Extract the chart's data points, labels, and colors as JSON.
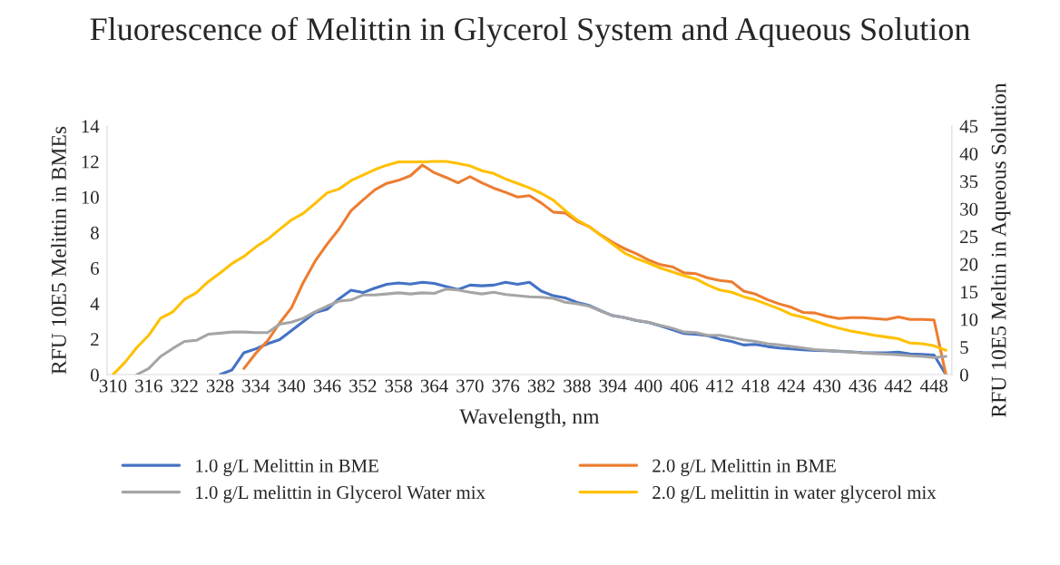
{
  "chart_data": {
    "type": "line",
    "title": "Fluorescence of Melittin in Glycerol System and Aqueous Solution",
    "xlabel": "Wavelength, nm",
    "ylabel": "RFU 10E5 Melittin in BMEs",
    "y2label": "RFU 10E5 Meltin in Aqueous Solution",
    "categories": [
      "310",
      null,
      null,
      "316",
      null,
      null,
      "322",
      null,
      null,
      "328",
      null,
      null,
      "334",
      null,
      null,
      "340",
      null,
      null,
      "346",
      null,
      null,
      "352",
      null,
      null,
      "358",
      null,
      null,
      "364",
      null,
      null,
      "370",
      null,
      null,
      "376",
      null,
      null,
      "382",
      null,
      null,
      "388",
      null,
      null,
      "394",
      null,
      null,
      "400",
      null,
      null,
      "406",
      null,
      null,
      "412",
      null,
      null,
      "418",
      null,
      null,
      "424",
      null,
      null,
      "430",
      null,
      null,
      "436",
      null,
      null,
      "442",
      null,
      null,
      "448",
      null
    ],
    "ylim": [
      0,
      14
    ],
    "yticks": [
      0,
      2,
      4,
      6,
      8,
      10,
      12,
      14
    ],
    "y2lim": [
      0,
      45
    ],
    "y2ticks": [
      0,
      5,
      10,
      15,
      20,
      25,
      30,
      35,
      40,
      45
    ],
    "grid": false,
    "legend": "bottom",
    "marker": "none",
    "line_style": "solid",
    "series": [
      {
        "name": "1.0 g/L Melittin in BME",
        "color": "#4472c4",
        "values": [
          null,
          null,
          null,
          null,
          null,
          null,
          null,
          null,
          null,
          0,
          0.26,
          1.23,
          1.45,
          1.74,
          1.97,
          2.48,
          2.99,
          3.5,
          3.68,
          4.27,
          4.75,
          4.62,
          4.87,
          5.08,
          5.16,
          5.1,
          5.2,
          5.13,
          4.96,
          4.79,
          5.04,
          5.0,
          5.04,
          5.2,
          5.08,
          5.2,
          4.7,
          4.44,
          4.32,
          4.07,
          3.9,
          3.59,
          3.32,
          3.21,
          3.04,
          2.94,
          2.74,
          2.53,
          2.31,
          2.27,
          2.19,
          2.0,
          1.87,
          1.67,
          1.7,
          1.58,
          1.5,
          1.45,
          1.4,
          1.36,
          1.35,
          1.31,
          1.28,
          1.24,
          1.23,
          1.23,
          1.26,
          1.16,
          1.14,
          1.1,
          0
        ]
      },
      {
        "name": "2.0 g/L Melittin in BME",
        "color": "#ed7d31",
        "values": [
          null,
          null,
          null,
          null,
          null,
          null,
          null,
          null,
          null,
          null,
          null,
          0.34,
          1.2,
          1.91,
          2.9,
          3.76,
          5.2,
          6.4,
          7.35,
          8.2,
          9.23,
          9.83,
          10.4,
          10.77,
          10.94,
          11.2,
          11.8,
          11.37,
          11.1,
          10.8,
          11.15,
          10.8,
          10.5,
          10.26,
          10.0,
          10.08,
          9.66,
          9.15,
          9.1,
          8.63,
          8.34,
          7.86,
          7.44,
          7.09,
          6.8,
          6.46,
          6.19,
          6.07,
          5.73,
          5.68,
          5.44,
          5.3,
          5.23,
          4.7,
          4.53,
          4.22,
          3.98,
          3.79,
          3.5,
          3.47,
          3.28,
          3.16,
          3.21,
          3.21,
          3.16,
          3.11,
          3.25,
          3.11,
          3.11,
          3.08,
          0
        ]
      },
      {
        "name": "1.0 g/L melittin in Glycerol Water mix",
        "color": "#a5a5a5",
        "axis": "y2",
        "values": [
          null,
          null,
          0,
          1.1,
          3.3,
          4.7,
          6.0,
          6.2,
          7.3,
          7.5,
          7.7,
          7.7,
          7.6,
          7.6,
          9.1,
          9.5,
          10.2,
          11.4,
          12.4,
          13.3,
          13.5,
          14.4,
          14.4,
          14.6,
          14.8,
          14.6,
          14.8,
          14.7,
          15.5,
          15.3,
          14.9,
          14.6,
          14.9,
          14.5,
          14.3,
          14.1,
          14.0,
          13.8,
          13.1,
          12.8,
          12.4,
          11.5,
          10.7,
          10.3,
          9.8,
          9.5,
          8.9,
          8.4,
          7.7,
          7.6,
          7.1,
          7.1,
          6.7,
          6.3,
          6.0,
          5.6,
          5.4,
          5.1,
          4.8,
          4.5,
          4.4,
          4.2,
          4.1,
          3.9,
          3.8,
          3.7,
          3.6,
          3.4,
          3.3,
          3.1,
          3.3
        ]
      },
      {
        "name": "2.0 g/L melittin in water glycerol mix",
        "color": "#ffc000",
        "axis": "y2",
        "values": [
          0,
          2.2,
          4.9,
          7.1,
          10.2,
          11.3,
          13.6,
          14.8,
          16.8,
          18.4,
          20.1,
          21.4,
          23.1,
          24.5,
          26.3,
          28.0,
          29.2,
          31.0,
          32.9,
          33.6,
          35.1,
          36.1,
          37.1,
          37.9,
          38.5,
          38.5,
          38.5,
          38.6,
          38.6,
          38.2,
          37.8,
          36.9,
          36.4,
          35.4,
          34.6,
          33.8,
          32.8,
          31.6,
          29.7,
          28.0,
          26.8,
          25.2,
          23.6,
          22.0,
          21.0,
          20.2,
          19.3,
          18.6,
          17.9,
          17.3,
          16.2,
          15.3,
          14.9,
          14.1,
          13.5,
          12.7,
          11.9,
          10.9,
          10.4,
          9.7,
          9.0,
          8.4,
          7.9,
          7.5,
          7.1,
          6.8,
          6.5,
          5.7,
          5.6,
          5.2,
          4.4
        ]
      }
    ]
  }
}
